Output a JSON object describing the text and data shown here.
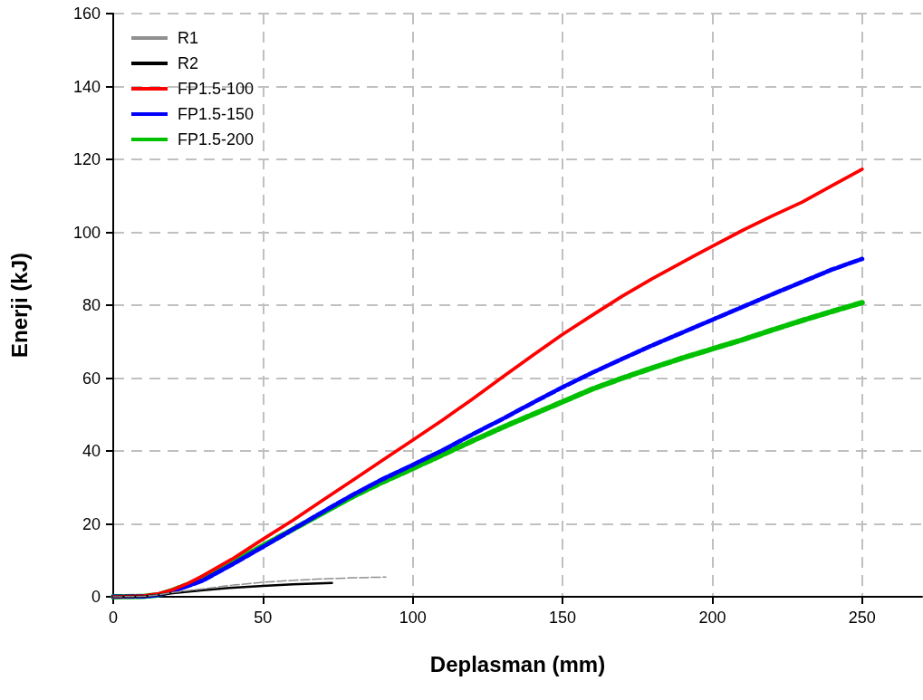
{
  "chart_data": {
    "type": "line",
    "xlabel": "Deplasman (mm)",
    "ylabel": "Enerji (kJ)",
    "xlim": [
      0,
      270
    ],
    "xticks": [
      0,
      50,
      100,
      150,
      200,
      250
    ],
    "ylim": [
      0,
      160
    ],
    "yticks": [
      0,
      20,
      40,
      60,
      80,
      100,
      120,
      140,
      160
    ],
    "grid": true,
    "legend": "top left",
    "marker": "none",
    "series": [
      {
        "name": "R1",
        "color": "#909090",
        "line_style": "dashed",
        "x": [
          0,
          10,
          15,
          20,
          30,
          40,
          50,
          60,
          70,
          80,
          91
        ],
        "values": [
          0,
          0.1,
          0.5,
          1.2,
          2.2,
          3.2,
          4.0,
          4.5,
          4.9,
          5.2,
          5.4
        ]
      },
      {
        "name": "R2",
        "color": "#000000",
        "line_style": "solid",
        "x": [
          0,
          10,
          15,
          20,
          30,
          40,
          50,
          60,
          73
        ],
        "values": [
          0,
          0.1,
          0.5,
          1.0,
          1.8,
          2.5,
          3.0,
          3.4,
          3.8
        ]
      },
      {
        "name": "FP1.5-100",
        "color": "#ff0000",
        "line_style": "solid",
        "x": [
          0,
          10,
          15,
          20,
          25,
          30,
          40,
          50,
          60,
          70,
          80,
          90,
          100,
          110,
          120,
          130,
          140,
          150,
          160,
          170,
          180,
          190,
          200,
          210,
          220,
          230,
          240,
          250
        ],
        "values": [
          0,
          0.2,
          0.8,
          2,
          3.7,
          5.8,
          10.5,
          15.8,
          21,
          26.5,
          32,
          37.5,
          43,
          48.5,
          54.3,
          60.3,
          66.2,
          72,
          77.3,
          82.5,
          87.3,
          91.8,
          96.2,
          100.5,
          104.5,
          108.3,
          112.8,
          117.3
        ]
      },
      {
        "name": "FP1.5-150",
        "color": "#0000ff",
        "line_style": "dashed",
        "x": [
          0,
          10,
          15,
          20,
          30,
          40,
          50,
          60,
          70,
          80,
          90,
          100,
          110,
          120,
          130,
          140,
          150,
          160,
          170,
          180,
          190,
          200,
          210,
          220,
          230,
          240,
          250
        ],
        "values": [
          0,
          0.1,
          0.5,
          1.5,
          4.5,
          9,
          13.7,
          18.5,
          23.3,
          28,
          32.3,
          36.2,
          40.2,
          44.6,
          48.8,
          53.2,
          57.5,
          61.5,
          65.3,
          69,
          72.5,
          76,
          79.5,
          83,
          86.4,
          89.8,
          92.7
        ]
      },
      {
        "name": "FP1.5-200",
        "color": "#00c000",
        "line_style": "dashed",
        "x": [
          0,
          10,
          15,
          20,
          30,
          40,
          50,
          60,
          70,
          80,
          90,
          100,
          110,
          120,
          130,
          140,
          150,
          160,
          170,
          180,
          190,
          200,
          210,
          220,
          230,
          240,
          250
        ],
        "values": [
          0,
          0.1,
          0.5,
          1.8,
          5,
          9.5,
          14,
          18.5,
          23,
          27.5,
          31.5,
          35.2,
          39,
          42.8,
          46.5,
          50,
          53.5,
          57,
          60,
          62.8,
          65.5,
          68,
          70.5,
          73.2,
          75.8,
          78.3,
          80.7
        ]
      }
    ]
  }
}
